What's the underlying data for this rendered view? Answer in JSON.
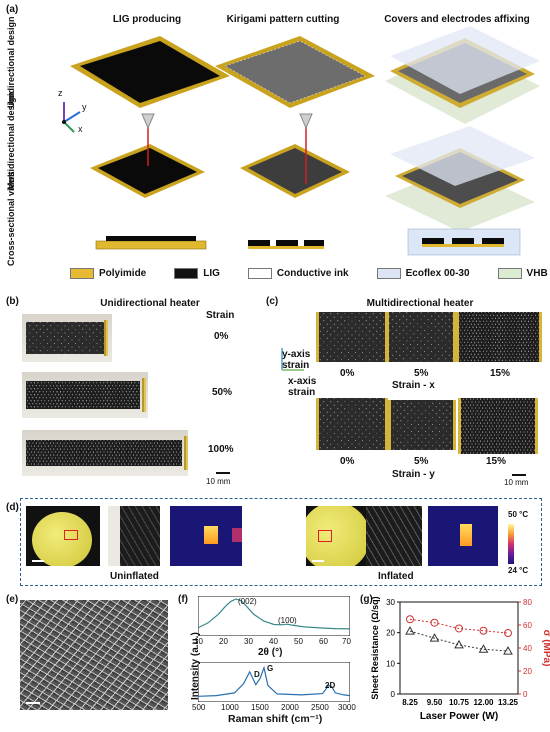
{
  "panel_a": {
    "label": "(a)",
    "columns": [
      "LIG producing",
      "Kirigami pattern cutting",
      "Covers and electrodes affixing"
    ],
    "rows": [
      "Unidirectional design",
      "Multidirectional design",
      "Cross-sectional views"
    ],
    "axes": {
      "z": "z",
      "y": "y",
      "x": "x"
    },
    "legend": [
      {
        "label": "Polyimide",
        "color": "#e8b932"
      },
      {
        "label": "LIG",
        "color": "#111111"
      },
      {
        "label": "Conductive ink",
        "color": "#ffffff"
      },
      {
        "label": "Ecoflex 00-30",
        "color": "#dde4f4"
      },
      {
        "label": "VHB",
        "color": "#dcecd0"
      }
    ]
  },
  "panel_b": {
    "label": "(b)",
    "title": "Unidirectional heater",
    "strain_header": "Strain",
    "strains": [
      "0%",
      "50%",
      "100%"
    ],
    "scale": "10 mm"
  },
  "panel_c": {
    "label": "(c)",
    "title": "Multidirectional heater",
    "y_axis": "y-axis strain",
    "x_axis": "x-axis strain",
    "row1_strains": [
      "0%",
      "5%",
      "15%"
    ],
    "row1_caption": "Strain - x",
    "row2_strains": [
      "0%",
      "5%",
      "15%"
    ],
    "row2_caption": "Strain - y",
    "scale": "10 mm"
  },
  "panel_d": {
    "label": "(d)",
    "left_caption": "Uninflated",
    "right_caption": "Inflated",
    "colorbar_max": "50 °C",
    "colorbar_min": "24 °C"
  },
  "panel_e": {
    "label": "(e)"
  },
  "panel_f": {
    "label": "(f)",
    "xrd_peaks": [
      "(002)",
      "(100)"
    ],
    "xrd_xlabel": "2θ (°)",
    "xrd_xticks": [
      "10",
      "20",
      "30",
      "40",
      "50",
      "60",
      "70"
    ],
    "raman_peaks": [
      "D",
      "G",
      "2D"
    ],
    "raman_xlabel": "Raman shift (cm⁻¹)",
    "raman_xticks": [
      "500",
      "1000",
      "1500",
      "2000",
      "2500",
      "3000"
    ],
    "ylabel": "Intensity (a.u.)"
  },
  "chart_data": [
    {
      "type": "line",
      "xlabel": "2θ (°)",
      "ylabel": "Intensity (a.u.)",
      "xlim": [
        10,
        70
      ],
      "x": [
        10,
        14,
        18,
        21,
        23,
        25,
        27,
        29,
        32,
        36,
        40,
        43,
        45,
        48,
        52,
        58,
        64,
        70
      ],
      "series": [
        {
          "values": [
            0.15,
            0.3,
            0.55,
            0.8,
            0.93,
            1.0,
            0.95,
            0.8,
            0.55,
            0.35,
            0.25,
            0.24,
            0.26,
            0.22,
            0.18,
            0.15,
            0.13,
            0.12
          ]
        }
      ]
    },
    {
      "type": "line",
      "xlabel": "Raman shift (cm⁻¹)",
      "ylabel": "Intensity (a.u.)",
      "xlim": [
        500,
        3000
      ],
      "x": [
        500,
        800,
        1100,
        1250,
        1350,
        1450,
        1520,
        1585,
        1650,
        1800,
        2200,
        2550,
        2650,
        2700,
        2760,
        2900,
        3000
      ],
      "series": [
        {
          "values": [
            0.08,
            0.1,
            0.18,
            0.45,
            0.8,
            0.42,
            0.6,
            0.92,
            0.4,
            0.15,
            0.12,
            0.16,
            0.4,
            0.36,
            0.18,
            0.12,
            0.1
          ]
        }
      ]
    },
    {
      "type": "scatter",
      "categories": [
        "8.25",
        "9.50",
        "10.75",
        "12.00",
        "13.25"
      ],
      "xlabel": "Laser Power (W)",
      "ylabel": "Sheet Resistance (Ω/sq)",
      "ylabel_right": "σ (MPa)",
      "ylim": [
        0,
        30
      ],
      "ylim_right": [
        0,
        80
      ],
      "yticks": [
        "0",
        "10",
        "20",
        "30"
      ],
      "yticks_right": [
        "0",
        "20",
        "40",
        "60",
        "80"
      ],
      "series": [
        {
          "values": [
            20.5,
            18.2,
            16.0,
            14.6,
            14.0
          ],
          "color": "#333333",
          "marker": "triangle"
        },
        {
          "values": [
            65,
            62,
            57,
            55,
            53
          ],
          "color": "#d03030",
          "marker": "circle",
          "axis": "right"
        }
      ]
    }
  ],
  "panel_g": {
    "label": "(g)"
  }
}
